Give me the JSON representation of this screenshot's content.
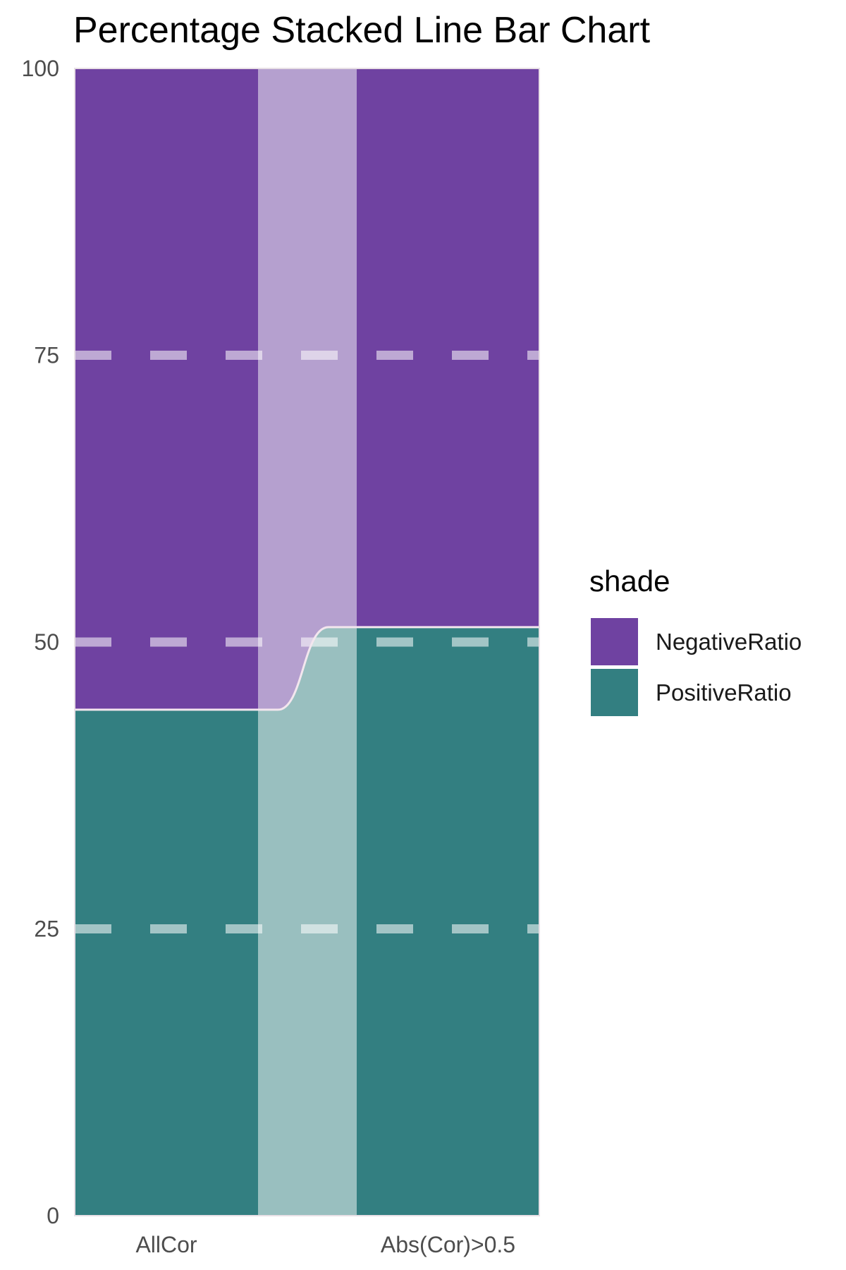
{
  "colors": {
    "negative": "#6f42a1",
    "positive": "#337f81",
    "link_negative": "#b5a0cf",
    "link_positive": "#99bfbf",
    "divider": "#f3e6ee",
    "grid": "#ffffff"
  },
  "chart_data": {
    "type": "bar",
    "title": "Percentage Stacked Line Bar Chart",
    "xlabel": "",
    "ylabel": "",
    "categories": [
      "AllCor",
      "Abs(Cor)>0.5"
    ],
    "series": [
      {
        "name": "NegativeRatio",
        "values": [
          55.9,
          48.7
        ]
      },
      {
        "name": "PositiveRatio",
        "values": [
          44.1,
          51.3
        ]
      }
    ],
    "ylim": [
      0,
      100
    ],
    "yticks": [
      "0",
      "25",
      "50",
      "75",
      "100"
    ],
    "grid": "dashed horizontal at major ticks",
    "legend": {
      "title": "shade",
      "position": "right",
      "items": [
        "NegativeRatio",
        "PositiveRatio"
      ]
    }
  }
}
